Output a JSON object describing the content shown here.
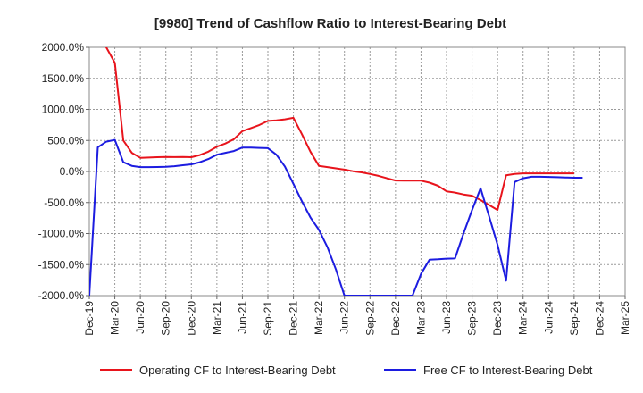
{
  "chart_data": {
    "type": "line",
    "title": "[9980]  Trend of Cashflow Ratio to Interest-Bearing Debt",
    "xlabel": "",
    "ylabel": "",
    "ylim": [
      -2000,
      2000
    ],
    "grid": true,
    "legend_position": "bottom",
    "x_ticks": [
      "Dec-19",
      "Mar-20",
      "Jun-20",
      "Sep-20",
      "Dec-20",
      "Mar-21",
      "Jun-21",
      "Sep-21",
      "Dec-21",
      "Mar-22",
      "Jun-22",
      "Sep-22",
      "Dec-22",
      "Mar-23",
      "Jun-23",
      "Sep-23",
      "Dec-23",
      "Mar-24",
      "Jun-24",
      "Sep-24",
      "Dec-24",
      "Mar-25"
    ],
    "y_ticks": [
      {
        "value": 2000,
        "label": "2000.0%"
      },
      {
        "value": 1500,
        "label": "1500.0%"
      },
      {
        "value": 1000,
        "label": "1000.0%"
      },
      {
        "value": 500,
        "label": "500.0%"
      },
      {
        "value": 0,
        "label": "0.0%"
      },
      {
        "value": -500,
        "label": "-500.0%"
      },
      {
        "value": -1000,
        "label": "-1000.0%"
      },
      {
        "value": -1500,
        "label": "-1500.0%"
      },
      {
        "value": -2000,
        "label": "-2000.0%"
      }
    ],
    "series": [
      {
        "name": "Operating CF to Interest-Bearing Debt",
        "color": "#e8141c",
        "points": [
          [
            "Jan-20",
            2500
          ],
          [
            "Feb-20",
            2000
          ],
          [
            "Mar-20",
            1750
          ],
          [
            "Apr-20",
            500
          ],
          [
            "May-20",
            300
          ],
          [
            "Jun-20",
            220
          ],
          [
            "Jul-20",
            225
          ],
          [
            "Aug-20",
            230
          ],
          [
            "Sep-20",
            235
          ],
          [
            "Oct-20",
            232
          ],
          [
            "Nov-20",
            235
          ],
          [
            "Dec-20",
            230
          ],
          [
            "Jan-21",
            265
          ],
          [
            "Feb-21",
            320
          ],
          [
            "Mar-21",
            400
          ],
          [
            "Apr-21",
            450
          ],
          [
            "May-21",
            520
          ],
          [
            "Jun-21",
            650
          ],
          [
            "Jul-21",
            700
          ],
          [
            "Aug-21",
            750
          ],
          [
            "Sep-21",
            815
          ],
          [
            "Oct-21",
            825
          ],
          [
            "Nov-21",
            840
          ],
          [
            "Dec-21",
            865
          ],
          [
            "Jan-22",
            600
          ],
          [
            "Feb-22",
            320
          ],
          [
            "Mar-22",
            90
          ],
          [
            "Apr-22",
            70
          ],
          [
            "May-22",
            50
          ],
          [
            "Jun-22",
            30
          ],
          [
            "Jul-22",
            5
          ],
          [
            "Aug-22",
            -15
          ],
          [
            "Sep-22",
            -40
          ],
          [
            "Oct-22",
            -70
          ],
          [
            "Nov-22",
            -110
          ],
          [
            "Dec-22",
            -145
          ],
          [
            "Jan-23",
            -148
          ],
          [
            "Feb-23",
            -147
          ],
          [
            "Mar-23",
            -148
          ],
          [
            "Apr-23",
            -180
          ],
          [
            "May-23",
            -230
          ],
          [
            "Jun-23",
            -320
          ],
          [
            "Jul-23",
            -340
          ],
          [
            "Aug-23",
            -370
          ],
          [
            "Sep-23",
            -390
          ],
          [
            "Oct-23",
            -460
          ],
          [
            "Nov-23",
            -540
          ],
          [
            "Dec-23",
            -620
          ],
          [
            "Jan-24",
            -60
          ],
          [
            "Feb-24",
            -40
          ],
          [
            "Mar-24",
            -30
          ],
          [
            "Apr-24",
            -30
          ],
          [
            "May-24",
            -30
          ],
          [
            "Jun-24",
            -30
          ],
          [
            "Jul-24",
            -30
          ],
          [
            "Aug-24",
            -30
          ],
          [
            "Sep-24",
            -30
          ]
        ]
      },
      {
        "name": "Free CF to Interest-Bearing Debt",
        "color": "#1c1ce0",
        "points": [
          [
            "Dec-19",
            -2000
          ],
          [
            "Jan-20",
            390
          ],
          [
            "Feb-20",
            480
          ],
          [
            "Mar-20",
            510
          ],
          [
            "Apr-20",
            150
          ],
          [
            "May-20",
            90
          ],
          [
            "Jun-20",
            70
          ],
          [
            "Jul-20",
            70
          ],
          [
            "Aug-20",
            72
          ],
          [
            "Sep-20",
            75
          ],
          [
            "Oct-20",
            85
          ],
          [
            "Nov-20",
            100
          ],
          [
            "Dec-20",
            115
          ],
          [
            "Jan-21",
            150
          ],
          [
            "Feb-21",
            200
          ],
          [
            "Mar-21",
            270
          ],
          [
            "Apr-21",
            300
          ],
          [
            "May-21",
            330
          ],
          [
            "Jun-21",
            385
          ],
          [
            "Jul-21",
            385
          ],
          [
            "Aug-21",
            380
          ],
          [
            "Sep-21",
            375
          ],
          [
            "Oct-21",
            270
          ],
          [
            "Nov-21",
            80
          ],
          [
            "Dec-21",
            -200
          ],
          [
            "Jan-22",
            -480
          ],
          [
            "Feb-22",
            -740
          ],
          [
            "Mar-22",
            -940
          ],
          [
            "Apr-22",
            -1220
          ],
          [
            "May-22",
            -1580
          ],
          [
            "Jun-22",
            -2000
          ],
          [
            "Feb-23",
            -2000
          ],
          [
            "Mar-23",
            -1650
          ],
          [
            "Apr-23",
            -1420
          ],
          [
            "May-23",
            -1415
          ],
          [
            "Jun-23",
            -1405
          ],
          [
            "Jul-23",
            -1400
          ],
          [
            "Aug-23",
            -1000
          ],
          [
            "Sep-23",
            -620
          ],
          [
            "Oct-23",
            -270
          ],
          [
            "Nov-23",
            -720
          ],
          [
            "Dec-23",
            -1180
          ],
          [
            "Jan-24",
            -1760
          ],
          [
            "Feb-24",
            -170
          ],
          [
            "Mar-24",
            -110
          ],
          [
            "Apr-24",
            -85
          ],
          [
            "May-24",
            -85
          ],
          [
            "Jun-24",
            -88
          ],
          [
            "Jul-24",
            -92
          ],
          [
            "Aug-24",
            -96
          ],
          [
            "Sep-24",
            -100
          ],
          [
            "Oct-24",
            -100
          ]
        ]
      }
    ]
  }
}
